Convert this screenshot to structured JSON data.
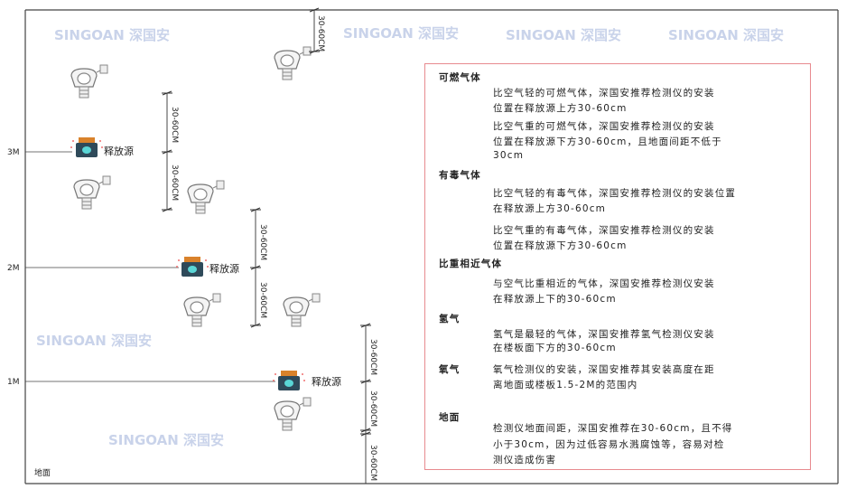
{
  "watermark": "SINGOAN 深国安",
  "levels": {
    "m3": "3M",
    "m2": "2M",
    "m1": "1M",
    "floor": "地面"
  },
  "dimension_label": "30-60CM",
  "source_label": "释放源",
  "colors": {
    "panel_border": "#e88a8f",
    "line": "#333333",
    "source_cap": "#d9822b",
    "source_body": "#2f4a5a"
  },
  "panel": {
    "combustible": {
      "heading": "可燃气体",
      "p1": [
        "比空气轻的可燃气体，深国安推荐检测仪的安装",
        "位置在释放源上方30-60cm"
      ],
      "p2": [
        "比空气重的可燃气体，深国安推荐检测仪的安装",
        "位置在释放源下方30-60cm，且地面间距不低于",
        "30cm"
      ]
    },
    "toxic": {
      "heading": "有毒气体",
      "p1": [
        "比空气轻的有毒气体，深国安推荐检测仪的安装位置",
        "在释放源上方30-60cm"
      ],
      "p2": [
        "比空气重的有毒气体，深国安推荐检测仪的安装",
        "位置在释放源下方30-60cm"
      ]
    },
    "similar": {
      "heading": "比重相近气体",
      "p1": [
        "与空气比重相近的气体，深国安推荐检测仪安装",
        "在释放源上下的30-60cm"
      ]
    },
    "hydrogen": {
      "heading": "氢气",
      "p1": [
        "氢气是最轻的气体，深国安推荐氢气检测仪安装",
        "在楼板面下方的30-60cm"
      ]
    },
    "oxygen": {
      "heading": "氧气",
      "p1": [
        "氧气检测仪的安装，深国安推荐其安装高度在距",
        "离地面或楼板1.5-2M的范围内"
      ]
    },
    "ground": {
      "heading": "地面",
      "p1": [
        "检测仪地面间距，深国安推荐在30-60cm，且不得",
        "小于30cm，因为过低容易水溅腐蚀等，容易对检",
        "测仪造成伤害"
      ]
    }
  }
}
